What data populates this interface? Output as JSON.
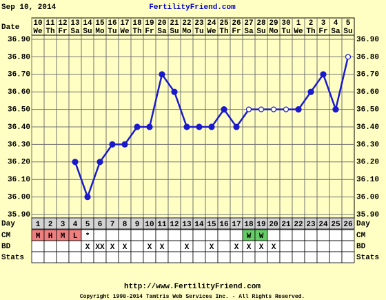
{
  "chart_data": {
    "type": "line",
    "header_date": "Sep 10, 2014",
    "site": "FertilityFriend.com",
    "x_label": "Date",
    "categories": [
      "10",
      "11",
      "12",
      "13",
      "14",
      "15",
      "16",
      "17",
      "18",
      "19",
      "20",
      "21",
      "22",
      "23",
      "24",
      "25",
      "26",
      "27",
      "28",
      "29",
      "30",
      "1",
      "2",
      "3",
      "4",
      "5"
    ],
    "weekdays": [
      "We",
      "Th",
      "Fr",
      "Sa",
      "Su",
      "Mo",
      "Tu",
      "We",
      "Th",
      "Fr",
      "Sa",
      "Su",
      "Mo",
      "Tu",
      "We",
      "Th",
      "Fr",
      "Sa",
      "Su",
      "Mo",
      "Tu",
      "We",
      "Th",
      "Fr",
      "Sa",
      "Su"
    ],
    "ylim": [
      35.9,
      36.9
    ],
    "yticks": [
      {
        "value": 35.9,
        "label": "35.90"
      },
      {
        "value": 36.0,
        "label": "36.00"
      },
      {
        "value": 36.1,
        "label": "36.10"
      },
      {
        "value": 36.2,
        "label": "36.20"
      },
      {
        "value": 36.3,
        "label": "36.30"
      },
      {
        "value": 36.4,
        "label": "36.40"
      },
      {
        "value": 36.5,
        "label": "36.50"
      },
      {
        "value": 36.6,
        "label": "36.60"
      },
      {
        "value": 36.7,
        "label": "36.70"
      },
      {
        "value": 36.8,
        "label": "36.80"
      },
      {
        "value": 36.9,
        "label": "36.90"
      }
    ],
    "grid": true,
    "series": [
      {
        "color": "#1a1acc",
        "values": [
          null,
          null,
          null,
          36.2,
          36.0,
          36.2,
          36.3,
          36.3,
          36.4,
          36.4,
          36.7,
          36.6,
          36.4,
          36.4,
          36.4,
          36.5,
          36.4,
          36.5,
          36.5,
          36.5,
          36.5,
          36.5,
          36.6,
          36.7,
          36.5,
          36.8
        ],
        "hollow": [
          false,
          false,
          false,
          false,
          false,
          false,
          false,
          false,
          false,
          false,
          false,
          false,
          false,
          false,
          false,
          false,
          false,
          true,
          true,
          true,
          true,
          false,
          false,
          false,
          false,
          true
        ]
      }
    ],
    "day_label": "Day",
    "days": [
      "1",
      "2",
      "3",
      "4",
      "5",
      "6",
      "7",
      "8",
      "9",
      "10",
      "11",
      "12",
      "13",
      "14",
      "15",
      "16",
      "17",
      "18",
      "19",
      "20",
      "21",
      "22",
      "23",
      "24",
      "25",
      "26"
    ],
    "cm_label": "CM",
    "cm": [
      "M",
      "H",
      "M",
      "L",
      "*",
      null,
      null,
      null,
      null,
      null,
      null,
      null,
      null,
      null,
      null,
      null,
      null,
      "W",
      "W",
      null,
      null,
      null,
      null,
      null,
      null,
      null
    ],
    "cm_colors": [
      "#f08080",
      "#f08080",
      "#f08080",
      "#f08080",
      null,
      null,
      null,
      null,
      null,
      null,
      null,
      null,
      null,
      null,
      null,
      null,
      null,
      "#66cc66",
      "#66cc66",
      null,
      null,
      null,
      null,
      null,
      null,
      null
    ],
    "bd_label": "BD",
    "bd": [
      null,
      null,
      null,
      null,
      "X",
      "XX",
      "X",
      "X",
      null,
      "X",
      "X",
      null,
      "X",
      null,
      "X",
      null,
      "X",
      "X",
      "X",
      "X",
      null,
      null,
      null,
      null,
      null,
      null
    ],
    "stats_label": "Stats",
    "footer_url": "http://www.FertilityFriend.com",
    "copyright": "Copyright 1998-2014 Tamtris Web Services Inc. - All Rights Reserved."
  }
}
